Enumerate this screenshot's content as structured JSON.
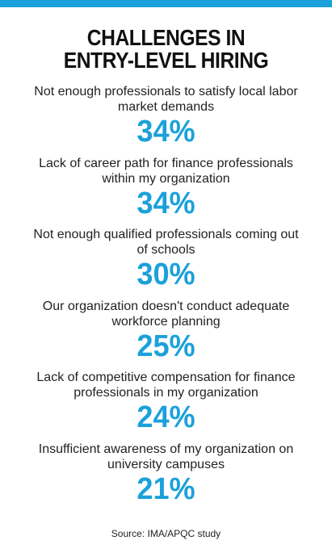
{
  "header": {
    "title_lines": [
      "CHALLENGES IN",
      "ENTRY-LEVEL HIRING"
    ]
  },
  "items": [
    {
      "lines": [
        "Not enough professionals to satisfy local labor",
        "market demands"
      ],
      "value": "34%"
    },
    {
      "lines": [
        "Lack of career path for finance professionals",
        "within my organization"
      ],
      "value": "34%"
    },
    {
      "lines": [
        "Not enough qualified professionals coming out",
        "of schools"
      ],
      "value": "30%"
    },
    {
      "lines": [
        "Our organization doesn't conduct adequate",
        "workforce planning"
      ],
      "value": "25%"
    },
    {
      "lines": [
        "Lack of competitive compensation for finance",
        "professionals in my organization"
      ],
      "value": "24%"
    },
    {
      "lines": [
        "Insufficient awareness of my organization on",
        "university campuses"
      ],
      "value": "21%"
    }
  ],
  "source": "Source: IMA/APQC study"
}
